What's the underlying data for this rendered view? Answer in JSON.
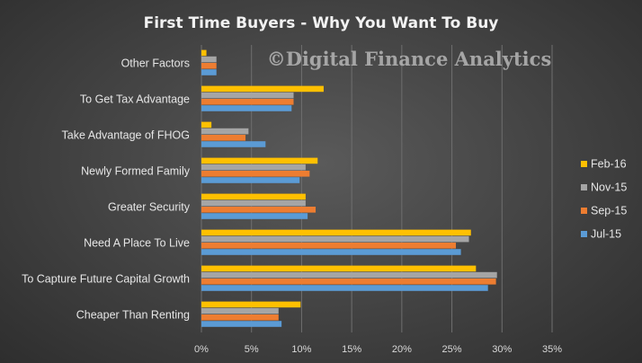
{
  "chart_data": {
    "type": "bar",
    "orientation": "horizontal",
    "title": "First Time Buyers - Why You Want To Buy",
    "watermark": "©Digital Finance Analytics",
    "categories": [
      "Other Factors",
      "To Get Tax Advantage",
      "Take Advantage of FHOG",
      "Newly Formed Family",
      "Greater Security",
      "Need A Place To Live",
      "To Capture Future Capital Growth",
      "Cheaper Than Renting"
    ],
    "series": [
      {
        "name": "Feb-16",
        "color": "#ffc000",
        "values": [
          0.5,
          12.2,
          1.0,
          11.6,
          10.4,
          26.9,
          27.4,
          9.9
        ]
      },
      {
        "name": "Nov-15",
        "color": "#a5a5a5",
        "values": [
          1.5,
          9.2,
          4.7,
          10.4,
          10.4,
          26.7,
          29.5,
          7.7
        ]
      },
      {
        "name": "Sep-15",
        "color": "#ed7d31",
        "values": [
          1.5,
          9.2,
          4.4,
          10.8,
          11.4,
          25.4,
          29.4,
          7.7
        ]
      },
      {
        "name": "Jul-15",
        "color": "#5b9bd5",
        "values": [
          1.5,
          9.0,
          6.4,
          9.8,
          10.6,
          25.9,
          28.6,
          8.0
        ]
      }
    ],
    "xlim": [
      0,
      35
    ],
    "xticks": [
      "0%",
      "5%",
      "10%",
      "15%",
      "20%",
      "25%",
      "30%",
      "35%"
    ],
    "grid": true,
    "legend_position": "right"
  }
}
